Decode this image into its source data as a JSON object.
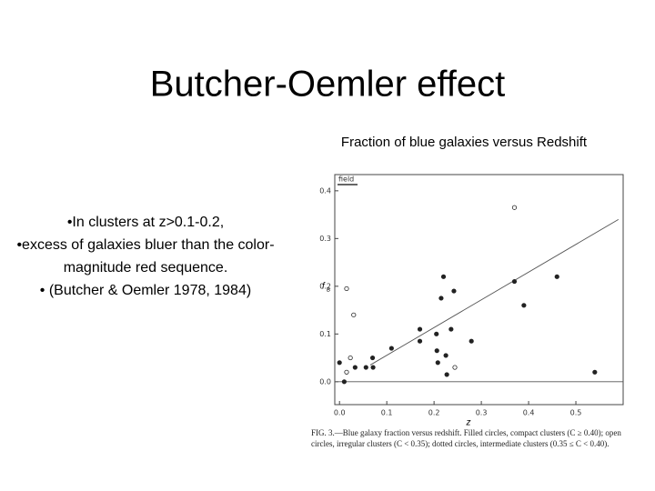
{
  "slide": {
    "title": "Butcher-Oemler effect",
    "bullets": [
      "•In clusters at z>0.1-0.2,",
      "•excess of galaxies bluer than the color-magnitude red sequence.",
      "• (Butcher & Oemler 1978, 1984)"
    ],
    "figure_heading": "Fraction of blue galaxies versus Redshift",
    "caption": "FIG. 3.—Blue galaxy fraction versus redshift. Filled circles, compact clusters (C ≥ 0.40); open circles, irregular clusters (C < 0.35); dotted circles, intermediate clusters (0.35 ≤ C < 0.40)."
  },
  "chart_data": {
    "type": "scatter",
    "x_label": "z",
    "y_label": "f",
    "y_label_sub": "B",
    "x": [
      0.0,
      0.01,
      0.015,
      0.015,
      0.023,
      0.03,
      0.033,
      0.056,
      0.07,
      0.071,
      0.11,
      0.17,
      0.17,
      0.205,
      0.206,
      0.208,
      0.215,
      0.22,
      0.225,
      0.227,
      0.236,
      0.242,
      0.244,
      0.279,
      0.37,
      0.37,
      0.39,
      0.46,
      0.54
    ],
    "values": [
      0.04,
      0.0,
      0.195,
      0.02,
      0.05,
      0.14,
      0.03,
      0.03,
      0.05,
      0.03,
      0.07,
      0.11,
      0.085,
      0.1,
      0.065,
      0.04,
      0.175,
      0.22,
      0.055,
      0.015,
      0.11,
      0.19,
      0.03,
      0.085,
      0.365,
      0.21,
      0.16,
      0.22,
      0.02
    ],
    "markers": [
      "filled",
      "filled",
      "open",
      "open",
      "open",
      "open",
      "filled",
      "filled",
      "filled",
      "filled",
      "filled",
      "filled",
      "filled",
      "filled",
      "filled",
      "filled",
      "filled",
      "filled",
      "filled",
      "filled",
      "filled",
      "filled",
      "open",
      "filled",
      "open",
      "filled",
      "filled",
      "filled",
      "filled"
    ],
    "color": "#222222",
    "fit_line": {
      "x": [
        0.065,
        0.59
      ],
      "y": [
        0.035,
        0.34
      ]
    },
    "reference": {
      "label": "field",
      "value": 0.413
    },
    "xlim": [
      -0.01,
      0.6
    ],
    "ylim": [
      -0.048,
      0.434
    ],
    "xticks": [
      {
        "value": 0,
        "label": "0.0"
      },
      0.1,
      0.2,
      0.3,
      0.4,
      0.5
    ],
    "yticks": [
      {
        "value": 0,
        "label": "0.0"
      },
      0.1,
      0.2,
      0.3,
      0.4
    ]
  }
}
